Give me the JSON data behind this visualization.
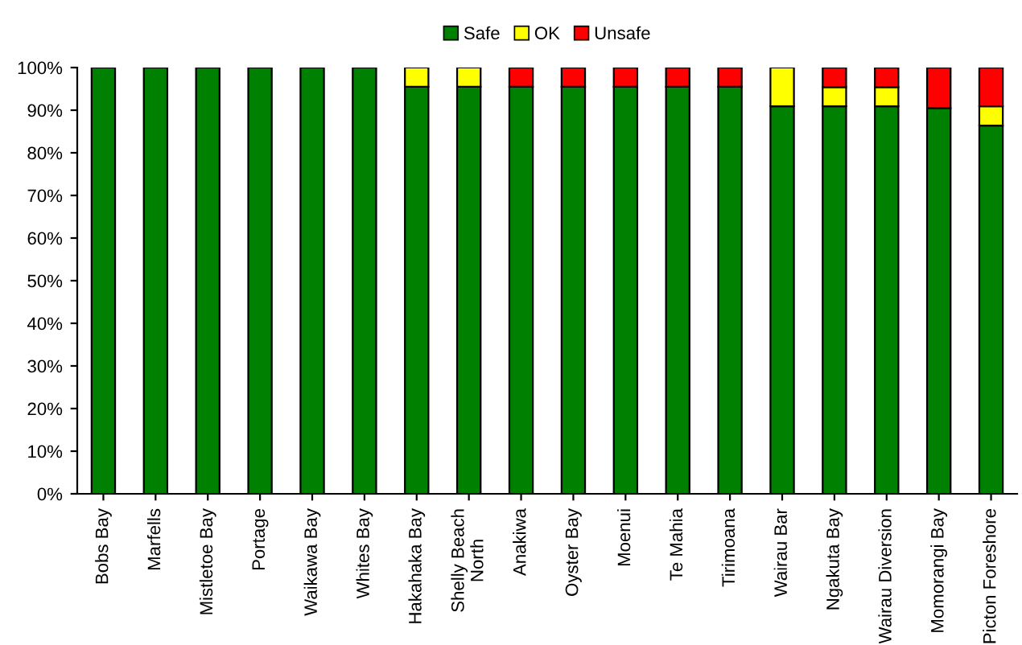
{
  "chart_data": {
    "type": "bar",
    "stacked": true,
    "legend": "top",
    "grid": false,
    "categories": [
      "Bobs Bay",
      "Marfells",
      "Mistletoe Bay",
      "Portage",
      "Waikawa Bay",
      "Whites Bay",
      "Hakahaka Bay",
      "Shelly Beach\nNorth",
      "Anakiwa",
      "Oyster Bay",
      "Moenui",
      "Te Mahia",
      "Tirimoana",
      "Wairau Bar",
      "Ngakuta Bay",
      "Wairau Diversion",
      "Momorangi Bay",
      "Picton Foreshore"
    ],
    "series": [
      {
        "name": "Safe",
        "color": "#008000",
        "values": [
          100,
          100,
          100,
          100,
          100,
          100,
          95.5,
          95.5,
          95.5,
          95.5,
          95.5,
          95.5,
          95.5,
          90.9,
          90.9,
          90.9,
          90.5,
          86.4
        ]
      },
      {
        "name": "OK",
        "color": "#ffff00",
        "values": [
          null,
          null,
          null,
          null,
          null,
          null,
          4.5,
          4.5,
          null,
          null,
          null,
          null,
          null,
          9.1,
          4.5,
          4.5,
          null,
          4.5
        ]
      },
      {
        "name": "Unsafe",
        "color": "#ff0000",
        "values": [
          null,
          null,
          null,
          null,
          null,
          null,
          null,
          null,
          4.5,
          4.5,
          4.5,
          4.5,
          4.5,
          null,
          4.6,
          4.6,
          9.5,
          9.1
        ]
      }
    ],
    "ylim": [
      0,
      100
    ],
    "yticks": [
      {
        "value": 0,
        "label": "0%"
      },
      {
        "value": 10,
        "label": "10%"
      },
      {
        "value": 20,
        "label": "20%"
      },
      {
        "value": 30,
        "label": "30%"
      },
      {
        "value": 40,
        "label": "40%"
      },
      {
        "value": 50,
        "label": "50%"
      },
      {
        "value": 60,
        "label": "60%"
      },
      {
        "value": 70,
        "label": "70%"
      },
      {
        "value": 80,
        "label": "80%"
      },
      {
        "value": 90,
        "label": "90%"
      },
      {
        "value": 100,
        "label": "100%"
      }
    ]
  }
}
